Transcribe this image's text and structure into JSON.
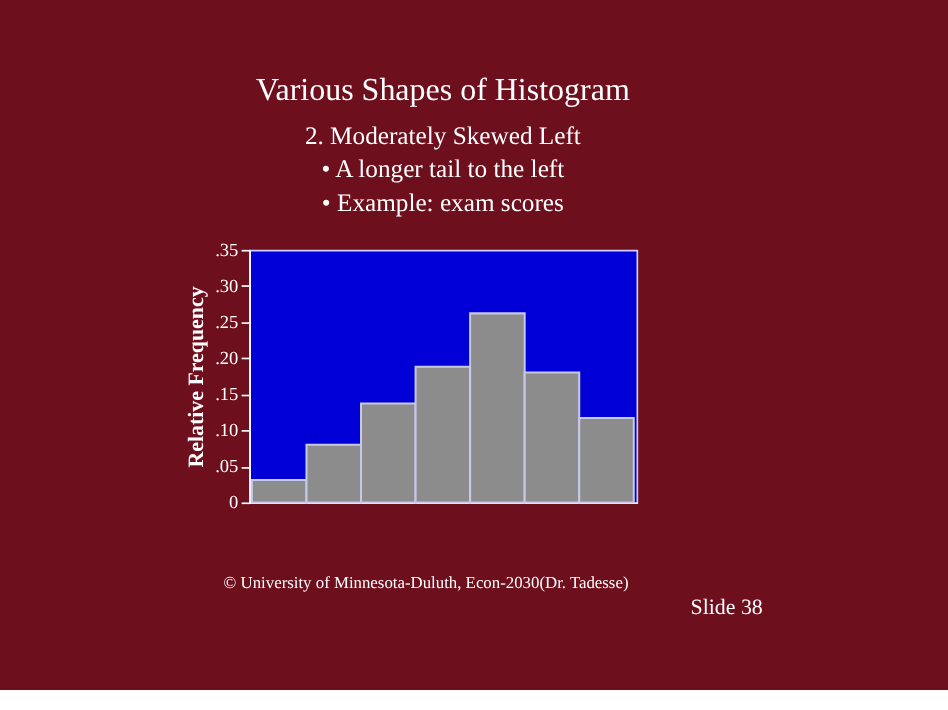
{
  "chart_data": {
    "type": "bar",
    "title": "Various Shapes of Histogram",
    "subtitle": [
      "2. Moderately Skewed Left",
      "• A longer tail to the left",
      "• Example:  exam scores"
    ],
    "ylabel": "Relative Frequency",
    "categories": [
      null,
      null,
      null,
      null,
      null,
      null,
      null
    ],
    "values": [
      0.031,
      0.08,
      0.137,
      0.188,
      0.262,
      0.18,
      0.117
    ],
    "color": "#8c8c8c",
    "ylim": [
      0,
      0.35
    ],
    "yticks": [
      0,
      {
        "value": 0.05,
        "label": ".05"
      },
      {
        "value": 0.1,
        "label": ".10"
      },
      {
        "value": 0.15,
        "label": ".15"
      },
      {
        "value": 0.2,
        "label": ".20"
      },
      {
        "value": 0.25,
        "label": ".25"
      },
      {
        "value": 0.3,
        "label": ".30"
      },
      {
        "value": 0.35,
        "label": ".35"
      }
    ],
    "tick_labels": "y",
    "grid": false,
    "annotations": [
      "© University of Minnesota-Duluth, Econ-2030(Dr. Tadesse)",
      "Slide 38"
    ]
  }
}
